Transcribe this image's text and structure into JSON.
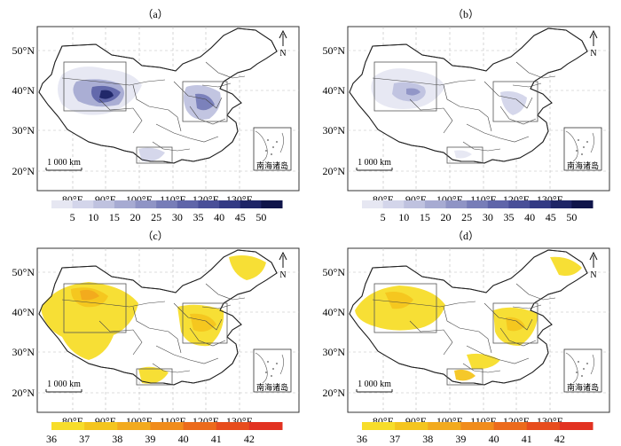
{
  "panels": [
    {
      "label": "（a）",
      "scheme": "blue"
    },
    {
      "label": "（b）",
      "scheme": "blue"
    },
    {
      "label": "（c）",
      "scheme": "heat"
    },
    {
      "label": "（d）",
      "scheme": "heat"
    }
  ],
  "lat_labels": [
    "50°N",
    "40°N",
    "30°N",
    "20°N"
  ],
  "lon_labels": [
    "80°E",
    "90°E",
    "100°E",
    "110°E",
    "120°E",
    "130°E"
  ],
  "scale_bar_label": "1 000 km",
  "north_label": "N",
  "inset_label": "南海诸岛",
  "legend_blue": {
    "labels": [
      "5",
      "10",
      "15",
      "20",
      "25",
      "30",
      "35",
      "40",
      "45",
      "50"
    ],
    "colors": [
      "#e6e7f2",
      "#d3d5ea",
      "#bfc2df",
      "#a7abd2",
      "#8f94c5",
      "#777db8",
      "#5f65a9",
      "#494f98",
      "#333a84",
      "#1e2566",
      "#0f154a"
    ]
  },
  "legend_heat": {
    "labels": [
      "36",
      "37",
      "38",
      "39",
      "40",
      "41",
      "42"
    ],
    "colors": [
      "#f7dd2a",
      "#f4c51f",
      "#f2aa1e",
      "#f08c1c",
      "#ec6b1c",
      "#e74d1d",
      "#e23221"
    ]
  }
}
